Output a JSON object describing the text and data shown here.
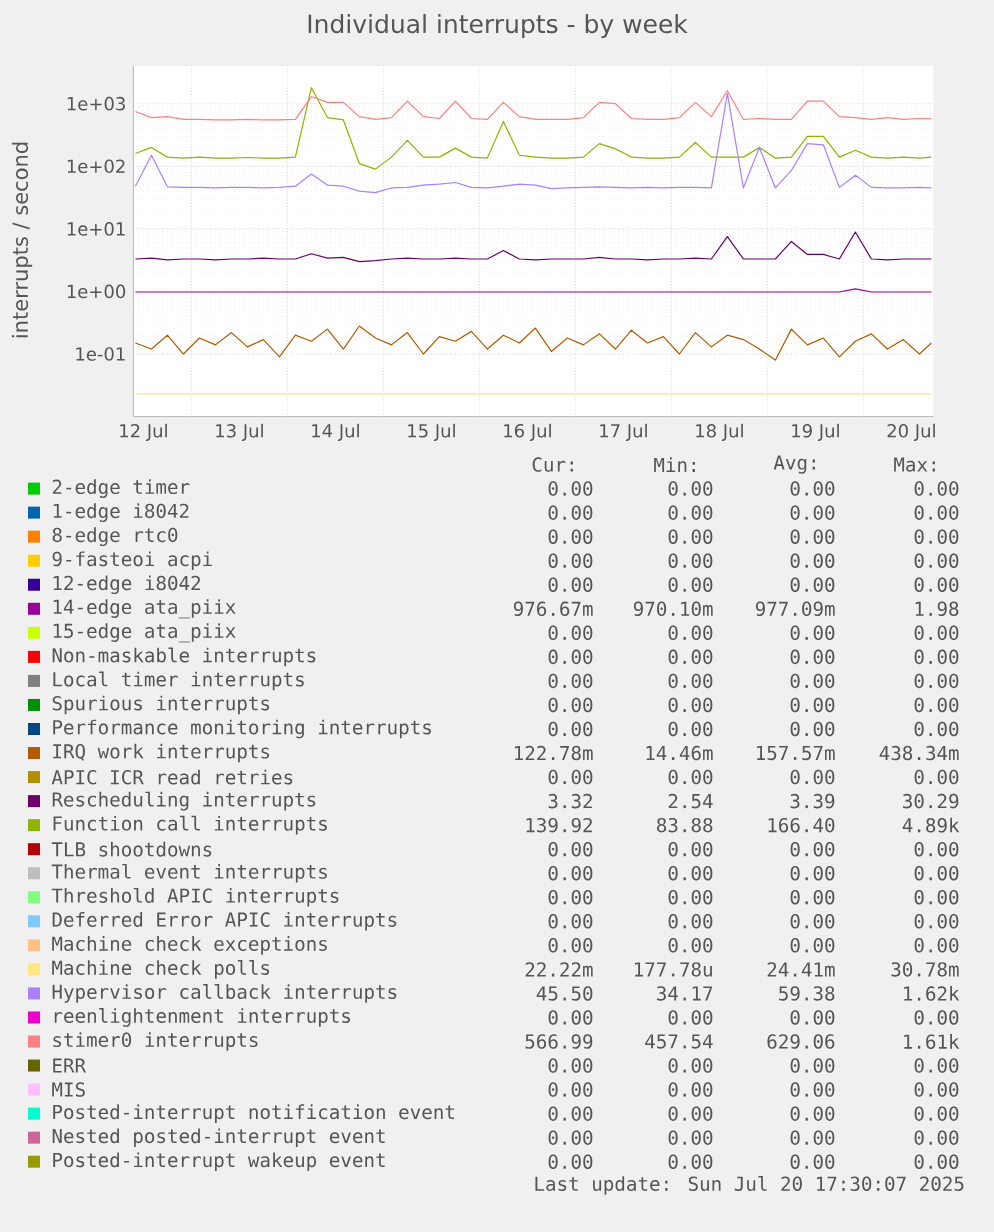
{
  "chart_data": {
    "type": "line",
    "title": "Individual interrupts - by week",
    "ylabel": "interrupts / second",
    "log": "y",
    "grid": true,
    "legend": "bottom",
    "xlim": [
      "2025-07-12T09:30",
      "2025-07-20T17:30"
    ],
    "xticks": [
      {
        "value": "2025-07-12T12:00",
        "label": "12 Jul"
      },
      {
        "value": "2025-07-13T00:00",
        "label": null
      },
      {
        "value": "2025-07-13T12:00",
        "label": "13 Jul"
      },
      {
        "value": "2025-07-14T00:00",
        "label": null
      },
      {
        "value": "2025-07-14T12:00",
        "label": "14 Jul"
      },
      {
        "value": "2025-07-15T00:00",
        "label": null
      },
      {
        "value": "2025-07-15T12:00",
        "label": "15 Jul"
      },
      {
        "value": "2025-07-16T00:00",
        "label": null
      },
      {
        "value": "2025-07-16T12:00",
        "label": "16 Jul"
      },
      {
        "value": "2025-07-17T00:00",
        "label": null
      },
      {
        "value": "2025-07-17T12:00",
        "label": "17 Jul"
      },
      {
        "value": "2025-07-18T00:00",
        "label": null
      },
      {
        "value": "2025-07-18T12:00",
        "label": "18 Jul"
      },
      {
        "value": "2025-07-19T00:00",
        "label": null
      },
      {
        "value": "2025-07-19T12:00",
        "label": "19 Jul"
      },
      {
        "value": "2025-07-20T00:00",
        "label": null
      },
      {
        "value": "2025-07-20T12:00",
        "label": "20 Jul"
      }
    ],
    "ylim": [
      0.01,
      4000
    ],
    "yticks": [
      {
        "value": 0.1,
        "label": "1e-01"
      },
      {
        "value": 1,
        "label": "1e+00"
      },
      {
        "value": 10,
        "label": "1e+01"
      },
      {
        "value": 100,
        "label": "1e+02"
      },
      {
        "value": 1000,
        "label": "1e+03"
      }
    ],
    "x": [
      "2025-07-12T10:00",
      "2025-07-12T14:00",
      "2025-07-12T18:00",
      "2025-07-12T22:00",
      "2025-07-13T02:00",
      "2025-07-13T06:00",
      "2025-07-13T10:00",
      "2025-07-13T14:00",
      "2025-07-13T18:00",
      "2025-07-13T22:00",
      "2025-07-14T02:00",
      "2025-07-14T06:00",
      "2025-07-14T10:00",
      "2025-07-14T14:00",
      "2025-07-14T18:00",
      "2025-07-14T22:00",
      "2025-07-15T02:00",
      "2025-07-15T06:00",
      "2025-07-15T10:00",
      "2025-07-15T14:00",
      "2025-07-15T18:00",
      "2025-07-15T22:00",
      "2025-07-16T02:00",
      "2025-07-16T06:00",
      "2025-07-16T10:00",
      "2025-07-16T14:00",
      "2025-07-16T18:00",
      "2025-07-16T22:00",
      "2025-07-17T02:00",
      "2025-07-17T06:00",
      "2025-07-17T10:00",
      "2025-07-17T14:00",
      "2025-07-17T18:00",
      "2025-07-17T22:00",
      "2025-07-18T02:00",
      "2025-07-18T06:00",
      "2025-07-18T10:00",
      "2025-07-18T14:00",
      "2025-07-18T18:00",
      "2025-07-18T22:00",
      "2025-07-19T02:00",
      "2025-07-19T06:00",
      "2025-07-19T10:00",
      "2025-07-19T14:00",
      "2025-07-19T18:00",
      "2025-07-19T22:00",
      "2025-07-20T02:00",
      "2025-07-20T06:00",
      "2025-07-20T10:00",
      "2025-07-20T14:00",
      "2025-07-20T17:00"
    ],
    "series": [
      {
        "name": "2-edge timer",
        "color": "#00cc00",
        "values": [
          null,
          null,
          null,
          null,
          null,
          null,
          null,
          null,
          null,
          null,
          null,
          null,
          null,
          null,
          null,
          null,
          null,
          null,
          null,
          null,
          null,
          null,
          null,
          null,
          null,
          null,
          null,
          null,
          null,
          null,
          null,
          null,
          null,
          null,
          null,
          null,
          null,
          null,
          null,
          null,
          null,
          null,
          null,
          null,
          null,
          null,
          null,
          null,
          null,
          null,
          null
        ]
      },
      {
        "name": "1-edge i8042",
        "color": "#0066b3",
        "values": [
          null,
          null,
          null,
          null,
          null,
          null,
          null,
          null,
          null,
          null,
          null,
          null,
          null,
          null,
          null,
          null,
          null,
          null,
          null,
          null,
          null,
          null,
          null,
          null,
          null,
          null,
          null,
          null,
          null,
          null,
          null,
          null,
          null,
          null,
          null,
          null,
          null,
          null,
          null,
          null,
          null,
          null,
          null,
          null,
          null,
          null,
          null,
          null,
          null,
          null,
          null
        ]
      },
      {
        "name": "8-edge rtc0",
        "color": "#ff8000",
        "values": [
          null,
          null,
          null,
          null,
          null,
          null,
          null,
          null,
          null,
          null,
          null,
          null,
          null,
          null,
          null,
          null,
          null,
          null,
          null,
          null,
          null,
          null,
          null,
          null,
          null,
          null,
          null,
          null,
          null,
          null,
          null,
          null,
          null,
          null,
          null,
          null,
          null,
          null,
          null,
          null,
          null,
          null,
          null,
          null,
          null,
          null,
          null,
          null,
          null,
          null,
          null
        ]
      },
      {
        "name": "9-fasteoi acpi",
        "color": "#ffcc00",
        "values": [
          null,
          null,
          null,
          null,
          null,
          null,
          null,
          null,
          null,
          null,
          null,
          null,
          null,
          null,
          null,
          null,
          null,
          null,
          null,
          null,
          null,
          null,
          null,
          null,
          null,
          null,
          null,
          null,
          null,
          null,
          null,
          null,
          null,
          null,
          null,
          null,
          null,
          null,
          null,
          null,
          null,
          null,
          null,
          null,
          null,
          null,
          null,
          null,
          null,
          null,
          null
        ]
      },
      {
        "name": "12-edge i8042",
        "color": "#330099",
        "values": [
          null,
          null,
          null,
          null,
          null,
          null,
          null,
          null,
          null,
          null,
          null,
          null,
          null,
          null,
          null,
          null,
          null,
          null,
          null,
          null,
          null,
          null,
          null,
          null,
          null,
          null,
          null,
          null,
          null,
          null,
          null,
          null,
          null,
          null,
          null,
          null,
          null,
          null,
          null,
          null,
          null,
          null,
          null,
          null,
          null,
          null,
          null,
          null,
          null,
          null,
          null
        ]
      },
      {
        "name": "14-edge ata_piix",
        "color": "#990099",
        "values": [
          0.98,
          0.98,
          0.98,
          0.98,
          0.98,
          0.98,
          0.98,
          0.98,
          0.98,
          0.98,
          0.98,
          0.98,
          0.98,
          0.98,
          0.98,
          0.98,
          0.98,
          0.98,
          0.98,
          0.98,
          0.98,
          0.98,
          0.98,
          0.98,
          0.98,
          0.98,
          0.98,
          0.98,
          0.98,
          0.98,
          0.98,
          0.98,
          0.98,
          0.98,
          0.98,
          0.98,
          0.98,
          0.98,
          0.98,
          0.98,
          0.98,
          0.98,
          0.98,
          0.98,
          0.98,
          1.1,
          0.98,
          0.98,
          0.98,
          0.98,
          0.98
        ]
      },
      {
        "name": "15-edge ata_piix",
        "color": "#ccff00",
        "values": [
          null,
          null,
          null,
          null,
          null,
          null,
          null,
          null,
          null,
          null,
          null,
          null,
          null,
          null,
          null,
          null,
          null,
          null,
          null,
          null,
          null,
          null,
          null,
          null,
          null,
          null,
          null,
          null,
          null,
          null,
          null,
          null,
          null,
          null,
          null,
          null,
          null,
          null,
          null,
          null,
          null,
          null,
          null,
          null,
          null,
          null,
          null,
          null,
          null,
          null,
          null
        ]
      },
      {
        "name": "Non-maskable interrupts",
        "color": "#ff0000",
        "values": [
          null,
          null,
          null,
          null,
          null,
          null,
          null,
          null,
          null,
          null,
          null,
          null,
          null,
          null,
          null,
          null,
          null,
          null,
          null,
          null,
          null,
          null,
          null,
          null,
          null,
          null,
          null,
          null,
          null,
          null,
          null,
          null,
          null,
          null,
          null,
          null,
          null,
          null,
          null,
          null,
          null,
          null,
          null,
          null,
          null,
          null,
          null,
          null,
          null,
          null,
          null
        ]
      },
      {
        "name": "Local timer interrupts",
        "color": "#808080",
        "values": [
          null,
          null,
          null,
          null,
          null,
          null,
          null,
          null,
          null,
          null,
          null,
          null,
          null,
          null,
          null,
          null,
          null,
          null,
          null,
          null,
          null,
          null,
          null,
          null,
          null,
          null,
          null,
          null,
          null,
          null,
          null,
          null,
          null,
          null,
          null,
          null,
          null,
          null,
          null,
          null,
          null,
          null,
          null,
          null,
          null,
          null,
          null,
          null,
          null,
          null,
          null
        ]
      },
      {
        "name": "Spurious interrupts",
        "color": "#008f00",
        "values": [
          null,
          null,
          null,
          null,
          null,
          null,
          null,
          null,
          null,
          null,
          null,
          null,
          null,
          null,
          null,
          null,
          null,
          null,
          null,
          null,
          null,
          null,
          null,
          null,
          null,
          null,
          null,
          null,
          null,
          null,
          null,
          null,
          null,
          null,
          null,
          null,
          null,
          null,
          null,
          null,
          null,
          null,
          null,
          null,
          null,
          null,
          null,
          null,
          null,
          null,
          null
        ]
      },
      {
        "name": "Performance monitoring interrupts",
        "color": "#00487d",
        "values": [
          null,
          null,
          null,
          null,
          null,
          null,
          null,
          null,
          null,
          null,
          null,
          null,
          null,
          null,
          null,
          null,
          null,
          null,
          null,
          null,
          null,
          null,
          null,
          null,
          null,
          null,
          null,
          null,
          null,
          null,
          null,
          null,
          null,
          null,
          null,
          null,
          null,
          null,
          null,
          null,
          null,
          null,
          null,
          null,
          null,
          null,
          null,
          null,
          null,
          null,
          null
        ]
      },
      {
        "name": "IRQ work interrupts",
        "color": "#b35a00",
        "values": [
          0.15,
          0.12,
          0.2,
          0.1,
          0.18,
          0.14,
          0.22,
          0.13,
          0.17,
          0.09,
          0.2,
          0.16,
          0.25,
          0.12,
          0.28,
          0.18,
          0.14,
          0.22,
          0.1,
          0.19,
          0.16,
          0.23,
          0.12,
          0.2,
          0.15,
          0.26,
          0.11,
          0.18,
          0.14,
          0.21,
          0.12,
          0.24,
          0.15,
          0.19,
          0.1,
          0.22,
          0.13,
          0.2,
          0.17,
          0.12,
          0.08,
          0.25,
          0.14,
          0.18,
          0.09,
          0.16,
          0.21,
          0.12,
          0.17,
          0.1,
          0.15
        ]
      },
      {
        "name": "APIC ICR read retries",
        "color": "#b38f00",
        "values": [
          null,
          null,
          null,
          null,
          null,
          null,
          null,
          null,
          null,
          null,
          null,
          null,
          null,
          null,
          null,
          null,
          null,
          null,
          null,
          null,
          null,
          null,
          null,
          null,
          null,
          null,
          null,
          null,
          null,
          null,
          null,
          null,
          null,
          null,
          null,
          null,
          null,
          null,
          null,
          null,
          null,
          null,
          null,
          null,
          null,
          null,
          null,
          null,
          null,
          null,
          null
        ]
      },
      {
        "name": "Rescheduling interrupts",
        "color": "#6b006b",
        "values": [
          3.3,
          3.4,
          3.2,
          3.3,
          3.3,
          3.2,
          3.3,
          3.3,
          3.4,
          3.3,
          3.3,
          4.0,
          3.4,
          3.5,
          3.0,
          3.1,
          3.3,
          3.4,
          3.3,
          3.3,
          3.4,
          3.3,
          3.3,
          4.5,
          3.3,
          3.2,
          3.3,
          3.3,
          3.3,
          3.5,
          3.3,
          3.3,
          3.2,
          3.3,
          3.3,
          3.4,
          3.3,
          7.5,
          3.3,
          3.3,
          3.3,
          6.3,
          3.9,
          3.9,
          3.3,
          8.9,
          3.3,
          3.2,
          3.3,
          3.3,
          3.3
        ]
      },
      {
        "name": "Function call interrupts",
        "color": "#8fb300",
        "values": [
          160,
          200,
          140,
          135,
          140,
          135,
          135,
          138,
          135,
          135,
          140,
          1800,
          600,
          550,
          110,
          90,
          140,
          260,
          140,
          140,
          195,
          140,
          135,
          520,
          150,
          140,
          135,
          135,
          140,
          230,
          190,
          140,
          135,
          135,
          140,
          240,
          140,
          140,
          140,
          200,
          135,
          140,
          300,
          300,
          140,
          180,
          140,
          135,
          140,
          135,
          140
        ]
      },
      {
        "name": "TLB shootdowns",
        "color": "#b30000",
        "values": [
          null,
          null,
          null,
          null,
          null,
          null,
          null,
          null,
          null,
          null,
          null,
          null,
          null,
          null,
          null,
          null,
          null,
          null,
          null,
          null,
          null,
          null,
          null,
          null,
          null,
          null,
          null,
          null,
          null,
          null,
          null,
          null,
          null,
          null,
          null,
          null,
          null,
          null,
          null,
          null,
          null,
          null,
          null,
          null,
          null,
          null,
          null,
          null,
          null,
          null,
          null
        ]
      },
      {
        "name": "Thermal event interrupts",
        "color": "#bebebe",
        "values": [
          null,
          null,
          null,
          null,
          null,
          null,
          null,
          null,
          null,
          null,
          null,
          null,
          null,
          null,
          null,
          null,
          null,
          null,
          null,
          null,
          null,
          null,
          null,
          null,
          null,
          null,
          null,
          null,
          null,
          null,
          null,
          null,
          null,
          null,
          null,
          null,
          null,
          null,
          null,
          null,
          null,
          null,
          null,
          null,
          null,
          null,
          null,
          null,
          null,
          null,
          null
        ]
      },
      {
        "name": "Threshold APIC interrupts",
        "color": "#80ff80",
        "values": [
          null,
          null,
          null,
          null,
          null,
          null,
          null,
          null,
          null,
          null,
          null,
          null,
          null,
          null,
          null,
          null,
          null,
          null,
          null,
          null,
          null,
          null,
          null,
          null,
          null,
          null,
          null,
          null,
          null,
          null,
          null,
          null,
          null,
          null,
          null,
          null,
          null,
          null,
          null,
          null,
          null,
          null,
          null,
          null,
          null,
          null,
          null,
          null,
          null,
          null,
          null
        ]
      },
      {
        "name": "Deferred Error APIC interrupts",
        "color": "#80c9ff",
        "values": [
          null,
          null,
          null,
          null,
          null,
          null,
          null,
          null,
          null,
          null,
          null,
          null,
          null,
          null,
          null,
          null,
          null,
          null,
          null,
          null,
          null,
          null,
          null,
          null,
          null,
          null,
          null,
          null,
          null,
          null,
          null,
          null,
          null,
          null,
          null,
          null,
          null,
          null,
          null,
          null,
          null,
          null,
          null,
          null,
          null,
          null,
          null,
          null,
          null,
          null,
          null
        ]
      },
      {
        "name": "Machine check exceptions",
        "color": "#ffc080",
        "values": [
          null,
          null,
          null,
          null,
          null,
          null,
          null,
          null,
          null,
          null,
          null,
          null,
          null,
          null,
          null,
          null,
          null,
          null,
          null,
          null,
          null,
          null,
          null,
          null,
          null,
          null,
          null,
          null,
          null,
          null,
          null,
          null,
          null,
          null,
          null,
          null,
          null,
          null,
          null,
          null,
          null,
          null,
          null,
          null,
          null,
          null,
          null,
          null,
          null,
          null,
          null
        ]
      },
      {
        "name": "Machine check polls",
        "color": "#ffe680",
        "values": [
          0.023,
          0.023,
          0.023,
          0.023,
          0.023,
          0.023,
          0.023,
          0.023,
          0.023,
          0.023,
          0.023,
          0.023,
          0.023,
          0.023,
          0.023,
          0.023,
          0.023,
          0.023,
          0.023,
          0.023,
          0.023,
          0.023,
          0.023,
          0.023,
          0.023,
          0.023,
          0.023,
          0.023,
          0.023,
          0.023,
          0.023,
          0.023,
          0.023,
          0.023,
          0.023,
          0.023,
          0.023,
          0.023,
          0.023,
          0.023,
          0.023,
          0.023,
          0.023,
          0.023,
          0.023,
          0.023,
          0.023,
          0.023,
          0.023,
          0.023,
          0.023
        ]
      },
      {
        "name": "Hypervisor callback interrupts",
        "color": "#aa80ff",
        "values": [
          48,
          150,
          47,
          46,
          46,
          45,
          46,
          46,
          45,
          46,
          48,
          75,
          50,
          48,
          40,
          38,
          45,
          46,
          50,
          52,
          55,
          46,
          45,
          48,
          52,
          50,
          44,
          45,
          46,
          47,
          46,
          45,
          46,
          45,
          46,
          46,
          45,
          1450,
          45,
          200,
          45,
          86,
          230,
          220,
          46,
          72,
          46,
          45,
          45,
          46,
          45
        ]
      },
      {
        "name": "reenlightenment interrupts",
        "color": "#ee00cc",
        "values": [
          null,
          null,
          null,
          null,
          null,
          null,
          null,
          null,
          null,
          null,
          null,
          null,
          null,
          null,
          null,
          null,
          null,
          null,
          null,
          null,
          null,
          null,
          null,
          null,
          null,
          null,
          null,
          null,
          null,
          null,
          null,
          null,
          null,
          null,
          null,
          null,
          null,
          null,
          null,
          null,
          null,
          null,
          null,
          null,
          null,
          null,
          null,
          null,
          null,
          null,
          null
        ]
      },
      {
        "name": "stimer0 interrupts",
        "color": "#ff8080",
        "values": [
          750,
          600,
          620,
          560,
          560,
          550,
          550,
          560,
          550,
          550,
          560,
          1300,
          1050,
          1050,
          620,
          560,
          600,
          1100,
          620,
          580,
          1100,
          580,
          560,
          1050,
          620,
          560,
          560,
          560,
          600,
          1050,
          1000,
          580,
          560,
          560,
          600,
          1050,
          620,
          1610,
          560,
          580,
          560,
          560,
          1100,
          1100,
          620,
          600,
          560,
          600,
          560,
          580,
          570
        ]
      },
      {
        "name": "ERR",
        "color": "#666600",
        "values": [
          null,
          null,
          null,
          null,
          null,
          null,
          null,
          null,
          null,
          null,
          null,
          null,
          null,
          null,
          null,
          null,
          null,
          null,
          null,
          null,
          null,
          null,
          null,
          null,
          null,
          null,
          null,
          null,
          null,
          null,
          null,
          null,
          null,
          null,
          null,
          null,
          null,
          null,
          null,
          null,
          null,
          null,
          null,
          null,
          null,
          null,
          null,
          null,
          null,
          null,
          null
        ]
      },
      {
        "name": "MIS",
        "color": "#ffbfff",
        "values": [
          null,
          null,
          null,
          null,
          null,
          null,
          null,
          null,
          null,
          null,
          null,
          null,
          null,
          null,
          null,
          null,
          null,
          null,
          null,
          null,
          null,
          null,
          null,
          null,
          null,
          null,
          null,
          null,
          null,
          null,
          null,
          null,
          null,
          null,
          null,
          null,
          null,
          null,
          null,
          null,
          null,
          null,
          null,
          null,
          null,
          null,
          null,
          null,
          null,
          null,
          null
        ]
      },
      {
        "name": "Posted-interrupt notification event",
        "color": "#00ffcc",
        "values": [
          null,
          null,
          null,
          null,
          null,
          null,
          null,
          null,
          null,
          null,
          null,
          null,
          null,
          null,
          null,
          null,
          null,
          null,
          null,
          null,
          null,
          null,
          null,
          null,
          null,
          null,
          null,
          null,
          null,
          null,
          null,
          null,
          null,
          null,
          null,
          null,
          null,
          null,
          null,
          null,
          null,
          null,
          null,
          null,
          null,
          null,
          null,
          null,
          null,
          null,
          null
        ]
      },
      {
        "name": "Nested posted-interrupt event",
        "color": "#cc6699",
        "values": [
          null,
          null,
          null,
          null,
          null,
          null,
          null,
          null,
          null,
          null,
          null,
          null,
          null,
          null,
          null,
          null,
          null,
          null,
          null,
          null,
          null,
          null,
          null,
          null,
          null,
          null,
          null,
          null,
          null,
          null,
          null,
          null,
          null,
          null,
          null,
          null,
          null,
          null,
          null,
          null,
          null,
          null,
          null,
          null,
          null,
          null,
          null,
          null,
          null,
          null,
          null
        ]
      },
      {
        "name": "Posted-interrupt wakeup event",
        "color": "#999900",
        "values": [
          null,
          null,
          null,
          null,
          null,
          null,
          null,
          null,
          null,
          null,
          null,
          null,
          null,
          null,
          null,
          null,
          null,
          null,
          null,
          null,
          null,
          null,
          null,
          null,
          null,
          null,
          null,
          null,
          null,
          null,
          null,
          null,
          null,
          null,
          null,
          null,
          null,
          null,
          null,
          null,
          null,
          null,
          null,
          null,
          null,
          null,
          null,
          null,
          null,
          null,
          null
        ]
      }
    ],
    "annotations": [
      "Cur:",
      "Min:",
      "Avg:",
      "Max:",
      "0.00",
      "0.00",
      "0.00",
      "0.00",
      "0.00",
      "0.00",
      "0.00",
      "0.00",
      "0.00",
      "0.00",
      "0.00",
      "0.00",
      "0.00",
      "0.00",
      "0.00",
      "0.00",
      "0.00",
      "0.00",
      "0.00",
      "0.00",
      "976.67m",
      "970.10m",
      "977.09m",
      "1.98",
      "0.00",
      "0.00",
      "0.00",
      "0.00",
      "0.00",
      "0.00",
      "0.00",
      "0.00",
      "0.00",
      "0.00",
      "0.00",
      "0.00",
      "0.00",
      "0.00",
      "0.00",
      "0.00",
      "0.00",
      "0.00",
      "0.00",
      "0.00",
      "122.78m",
      "14.46m",
      "157.57m",
      "438.34m",
      "0.00",
      "0.00",
      "0.00",
      "0.00",
      "3.32",
      "2.54",
      "3.39",
      "30.29",
      "139.92",
      "83.88",
      "166.40",
      "4.89k",
      "0.00",
      "0.00",
      "0.00",
      "0.00",
      "0.00",
      "0.00",
      "0.00",
      "0.00",
      "0.00",
      "0.00",
      "0.00",
      "0.00",
      "0.00",
      "0.00",
      "0.00",
      "0.00",
      "0.00",
      "0.00",
      "0.00",
      "0.00",
      "22.22m",
      "177.78u",
      "24.41m",
      "30.78m",
      "45.50",
      "34.17",
      "59.38",
      "1.62k",
      "0.00",
      "0.00",
      "0.00",
      "0.00",
      "566.99",
      "457.54",
      "629.06",
      "1.61k",
      "0.00",
      "0.00",
      "0.00",
      "0.00",
      "0.00",
      "0.00",
      "0.00",
      "0.00",
      "0.00",
      "0.00",
      "0.00",
      "0.00",
      "0.00",
      "0.00",
      "0.00",
      "0.00",
      "0.00",
      "0.00",
      "0.00",
      "0.00",
      "Last update: Sun Jul 20 17:30:07 2025"
    ]
  }
}
